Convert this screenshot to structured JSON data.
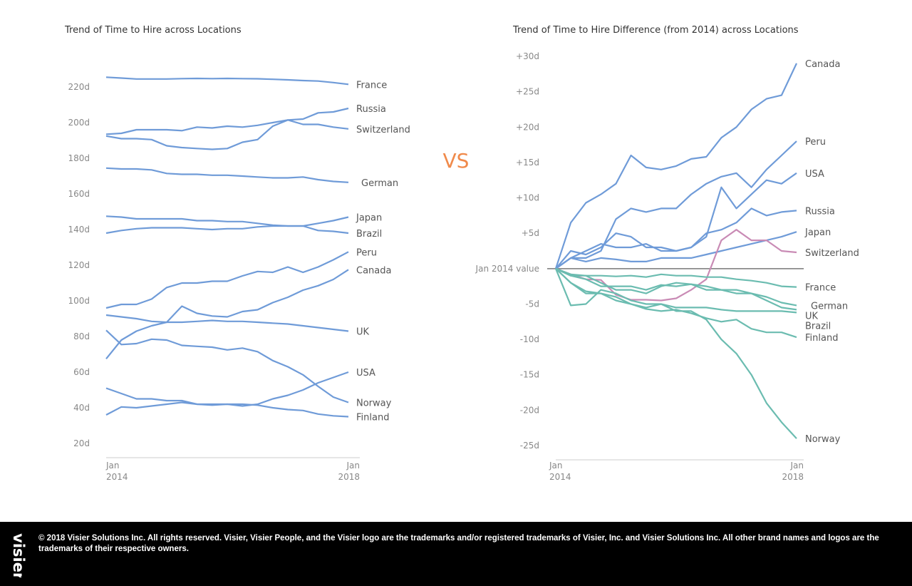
{
  "vs_label": "VS",
  "colors": {
    "positive": "#6f9bd8",
    "negative": "#6bbcb0",
    "crossover": "#c98bb5",
    "vs": "#f08a4b"
  },
  "footer": {
    "logo_text": "visier",
    "text": "© 2018 Visier Solutions Inc. All rights reserved. Visier, Visier People, and the Visier logo are the trademarks and/or registered trademarks of Visier, Inc. and Visier Solutions Inc. All other brand names and logos are the trademarks of their respective owners."
  },
  "chart_data": [
    {
      "type": "line",
      "title": "Trend of Time to Hire across Locations",
      "xlabel": "",
      "ylabel": "",
      "x": [
        "Jan 2014",
        "Apr 2014",
        "Jul 2014",
        "Oct 2014",
        "Jan 2015",
        "Apr 2015",
        "Jul 2015",
        "Oct 2015",
        "Jan 2016",
        "Apr 2016",
        "Jul 2016",
        "Oct 2016",
        "Jan 2017",
        "Apr 2017",
        "Jul 2017",
        "Oct 2017",
        "Jan 2018"
      ],
      "x_ticks": [
        {
          "line1": "Jan",
          "line2": "2014"
        },
        {
          "line1": "Jan",
          "line2": "2018"
        }
      ],
      "y_ticks": [
        "20d",
        "40d",
        "60d",
        "80d",
        "100d",
        "120d",
        "140d",
        "160d",
        "180d",
        "200d",
        "220d"
      ],
      "ylim": [
        15,
        226
      ],
      "y_unit": "d",
      "grid": false,
      "legend": "end-of-line labels",
      "series": [
        {
          "name": "France",
          "color": "#6f9bd8",
          "values": [
            225.5,
            225,
            224.5,
            224.5,
            224.5,
            224.7,
            224.8,
            224.7,
            224.8,
            224.7,
            224.6,
            224.3,
            224,
            223.6,
            223.3,
            222.5,
            221.5
          ]
        },
        {
          "name": "Russia",
          "color": "#6f9bd8",
          "values": [
            193.5,
            194,
            196,
            196,
            196,
            195.5,
            197.5,
            197,
            198,
            197.5,
            198.5,
            200,
            201.5,
            202,
            205.5,
            206,
            208
          ]
        },
        {
          "name": "Switzerland",
          "color": "#6f9bd8",
          "values": [
            192.5,
            191,
            191,
            190.5,
            187,
            186,
            185.5,
            185,
            185.5,
            189,
            190.5,
            198,
            201.5,
            199,
            199,
            197.5,
            196.5
          ]
        },
        {
          "name": "German",
          "color": "#6f9bd8",
          "values": [
            174.5,
            174,
            174,
            173.5,
            171.5,
            171,
            171,
            170.5,
            170.5,
            170,
            169.5,
            169,
            169,
            169.5,
            168,
            167,
            166.5
          ]
        },
        {
          "name": "Japan",
          "color": "#6f9bd8",
          "values": [
            147.5,
            147,
            146,
            146,
            146,
            146,
            145,
            145,
            144.5,
            144.5,
            143.5,
            142.5,
            142,
            142,
            143.5,
            145,
            147
          ]
        },
        {
          "name": "Brazil",
          "color": "#6f9bd8",
          "values": [
            138,
            139.5,
            140.5,
            141,
            141,
            141,
            140.5,
            140,
            140.5,
            140.5,
            141.5,
            142,
            142,
            142,
            139.5,
            139,
            138
          ]
        },
        {
          "name": "Peru",
          "color": "#6f9bd8",
          "values": [
            96,
            98,
            98,
            101,
            107.5,
            110,
            110,
            111,
            111,
            114,
            116.5,
            116,
            119,
            116,
            119,
            123,
            127.5
          ]
        },
        {
          "name": "Canada",
          "color": "#6f9bd8",
          "values": [
            67.5,
            78,
            83,
            86,
            88,
            97,
            93,
            91.5,
            91,
            94,
            95,
            99,
            102,
            106,
            108.5,
            112,
            117.5
          ]
        },
        {
          "name": "UK",
          "color": "#6f9bd8",
          "values": [
            92,
            91,
            90,
            88.5,
            88,
            88,
            88.5,
            89,
            88.5,
            88.5,
            88,
            87.5,
            87,
            86,
            85,
            84,
            83
          ]
        },
        {
          "name": "USA",
          "color": "#6f9bd8",
          "values": [
            36,
            40.5,
            40,
            41,
            42,
            43,
            42,
            41.5,
            42,
            41,
            42,
            45,
            47,
            50,
            54,
            57,
            60
          ]
        },
        {
          "name": "Norway",
          "color": "#6f9bd8",
          "values": [
            83.5,
            75.5,
            76,
            78.5,
            78,
            75,
            74.5,
            74,
            72.5,
            73.5,
            71.5,
            66.5,
            63,
            58.5,
            52,
            46,
            43
          ]
        },
        {
          "name": "Finland",
          "color": "#6f9bd8",
          "values": [
            51,
            48,
            45,
            45,
            44,
            44,
            42,
            42,
            42,
            42,
            41.5,
            40,
            39,
            38.5,
            36.5,
            35.5,
            35
          ]
        }
      ]
    },
    {
      "type": "line",
      "title": "Trend of Time to Hire Difference (from 2014) across Locations",
      "xlabel": "",
      "ylabel": "",
      "x": [
        "Jan 2014",
        "Apr 2014",
        "Jul 2014",
        "Oct 2014",
        "Jan 2015",
        "Apr 2015",
        "Jul 2015",
        "Oct 2015",
        "Jan 2016",
        "Apr 2016",
        "Jul 2016",
        "Oct 2016",
        "Jan 2017",
        "Apr 2017",
        "Jul 2017",
        "Oct 2017",
        "Jan 2018"
      ],
      "x_ticks": [
        {
          "line1": "Jan",
          "line2": "2014"
        },
        {
          "line1": "Jan",
          "line2": "2018"
        }
      ],
      "y_ticks": [
        "+30d",
        "+25d",
        "+20d",
        "+15d",
        "+10d",
        "+5d",
        "-5d",
        "-10d",
        "-15d",
        "-20d",
        "-25d"
      ],
      "baseline_label": "Jan 2014 value",
      "ylim": [
        -27,
        31
      ],
      "grid": false,
      "legend": "end-of-line labels",
      "series": [
        {
          "name": "Canada",
          "color": "#6f9bd8",
          "values": [
            0,
            6.5,
            9.3,
            10.5,
            12,
            16,
            14.3,
            14,
            14.5,
            15.5,
            15.8,
            18.5,
            20,
            22.5,
            24,
            24.5,
            29
          ]
        },
        {
          "name": "Peru",
          "color": "#6f9bd8",
          "values": [
            0,
            1.5,
            1.5,
            2.5,
            7,
            8.5,
            8,
            8.5,
            8.5,
            10.5,
            12,
            13,
            13.5,
            11.5,
            14,
            16,
            18
          ]
        },
        {
          "name": "USA",
          "color": "#6f9bd8",
          "values": [
            0,
            2.5,
            2,
            3,
            5,
            4.5,
            3,
            3,
            2.5,
            3,
            4.5,
            11.5,
            8.5,
            10.5,
            12.5,
            12,
            13.5
          ]
        },
        {
          "name": "Russia",
          "color": "#6f9bd8",
          "values": [
            0,
            1.5,
            2.5,
            3.5,
            3,
            3,
            3.5,
            2.5,
            2.5,
            3,
            5,
            5.5,
            6.5,
            8.5,
            7.5,
            8,
            8.2
          ]
        },
        {
          "name": "Japan",
          "color": "#6f9bd8",
          "values": [
            0,
            1.5,
            1,
            1.5,
            1.3,
            1,
            1,
            1.5,
            1.5,
            1.5,
            2,
            2.5,
            3,
            3.5,
            4,
            4.5,
            5.2
          ]
        },
        {
          "name": "Switzerland",
          "color": "#c98bb5",
          "values": [
            0,
            -0.8,
            -1.5,
            -1.6,
            -3.7,
            -4.4,
            -4.4,
            -4.5,
            -4.2,
            -3,
            -1.5,
            4,
            5.5,
            4,
            4,
            2.5,
            2.3
          ]
        },
        {
          "name": "France",
          "color": "#6bbcb0",
          "values": [
            0,
            -0.8,
            -1,
            -1,
            -1.1,
            -1,
            -1.2,
            -0.8,
            -1,
            -1,
            -1.2,
            -1.2,
            -1.5,
            -1.7,
            -2,
            -2.5,
            -2.6
          ]
        },
        {
          "name": "German",
          "color": "#6bbcb0",
          "values": [
            0,
            -1,
            -1.5,
            -2.5,
            -2.5,
            -2.5,
            -3,
            -2.3,
            -2.5,
            -2.2,
            -2.5,
            -3,
            -3,
            -3.5,
            -4,
            -4.8,
            -5.2
          ]
        },
        {
          "name": "UK",
          "color": "#6bbcb0",
          "values": [
            0,
            -1,
            -1,
            -2,
            -3,
            -3,
            -3.5,
            -2.5,
            -2,
            -2.2,
            -3,
            -3,
            -3.5,
            -3.5,
            -4.5,
            -5.5,
            -5.8
          ]
        },
        {
          "name": "Brazil",
          "color": "#6bbcb0",
          "values": [
            0,
            -2,
            -3.5,
            -3.5,
            -4.5,
            -5,
            -5.5,
            -5,
            -5.5,
            -5.5,
            -5.5,
            -5.8,
            -6,
            -6,
            -6,
            -6,
            -6.2
          ]
        },
        {
          "name": "Finland",
          "color": "#6bbcb0",
          "values": [
            0,
            -2,
            -3.2,
            -3.5,
            -4,
            -5,
            -5.7,
            -6,
            -5.8,
            -6.3,
            -7,
            -7.5,
            -7.2,
            -8.5,
            -9,
            -9,
            -9.7
          ]
        },
        {
          "name": "Norway",
          "color": "#6bbcb0",
          "values": [
            0,
            -5.2,
            -5,
            -3,
            -3.5,
            -4.5,
            -5,
            -5,
            -6,
            -6,
            -7.2,
            -10,
            -12,
            -15,
            -19,
            -21.7,
            -24
          ]
        }
      ]
    }
  ]
}
